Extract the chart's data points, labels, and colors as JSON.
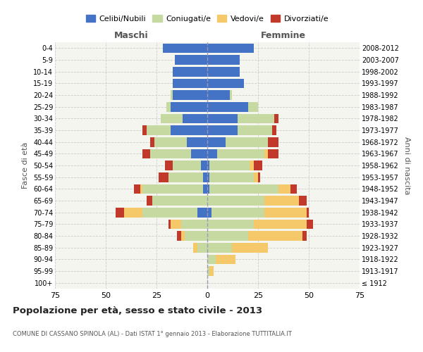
{
  "age_groups": [
    "100+",
    "95-99",
    "90-94",
    "85-89",
    "80-84",
    "75-79",
    "70-74",
    "65-69",
    "60-64",
    "55-59",
    "50-54",
    "45-49",
    "40-44",
    "35-39",
    "30-34",
    "25-29",
    "20-24",
    "15-19",
    "10-14",
    "5-9",
    "0-4"
  ],
  "birth_years": [
    "≤ 1912",
    "1913-1917",
    "1918-1922",
    "1923-1927",
    "1928-1932",
    "1933-1937",
    "1938-1942",
    "1943-1947",
    "1948-1952",
    "1953-1957",
    "1958-1962",
    "1963-1967",
    "1968-1972",
    "1973-1977",
    "1978-1982",
    "1983-1987",
    "1988-1992",
    "1993-1997",
    "1998-2002",
    "2003-2007",
    "2008-2012"
  ],
  "males": {
    "celibi": [
      0,
      0,
      0,
      0,
      0,
      0,
      5,
      0,
      2,
      2,
      3,
      8,
      10,
      18,
      12,
      18,
      17,
      17,
      17,
      16,
      22
    ],
    "coniugati": [
      0,
      0,
      0,
      5,
      11,
      13,
      27,
      27,
      30,
      17,
      14,
      20,
      16,
      12,
      11,
      2,
      1,
      0,
      0,
      0,
      0
    ],
    "vedovi": [
      0,
      0,
      0,
      2,
      2,
      5,
      9,
      0,
      1,
      0,
      0,
      0,
      0,
      0,
      0,
      0,
      0,
      0,
      0,
      0,
      0
    ],
    "divorziati": [
      0,
      0,
      0,
      0,
      2,
      1,
      4,
      3,
      3,
      5,
      4,
      4,
      2,
      2,
      0,
      0,
      0,
      0,
      0,
      0,
      0
    ]
  },
  "females": {
    "nubili": [
      0,
      0,
      0,
      0,
      0,
      0,
      2,
      0,
      1,
      1,
      1,
      5,
      9,
      15,
      15,
      20,
      11,
      18,
      16,
      16,
      23
    ],
    "coniugate": [
      0,
      1,
      4,
      12,
      20,
      23,
      26,
      28,
      34,
      22,
      20,
      23,
      21,
      17,
      18,
      5,
      1,
      0,
      0,
      0,
      0
    ],
    "vedove": [
      0,
      2,
      10,
      18,
      27,
      26,
      21,
      17,
      6,
      2,
      2,
      2,
      0,
      0,
      0,
      0,
      0,
      0,
      0,
      0,
      0
    ],
    "divorziate": [
      0,
      0,
      0,
      0,
      2,
      3,
      1,
      4,
      3,
      1,
      4,
      5,
      5,
      2,
      2,
      0,
      0,
      0,
      0,
      0,
      0
    ]
  },
  "colors": {
    "celibi": "#4472c4",
    "coniugati": "#c5d9a0",
    "vedovi": "#f5c86a",
    "divorziati": "#c0392b"
  },
  "title": "Popolazione per età, sesso e stato civile - 2013",
  "subtitle": "COMUNE DI CASSANO SPINOLA (AL) - Dati ISTAT 1° gennaio 2013 - Elaborazione TUTTITALIA.IT",
  "xlabel_left": "Maschi",
  "xlabel_right": "Femmine",
  "ylabel_left": "Fasce di età",
  "ylabel_right": "Anni di nascita",
  "xlim": 75,
  "legend_labels": [
    "Celibi/Nubili",
    "Coniugati/e",
    "Vedovi/e",
    "Divorziati/e"
  ],
  "background_color": "#f5f5f0",
  "grid_color": "#cccccc"
}
